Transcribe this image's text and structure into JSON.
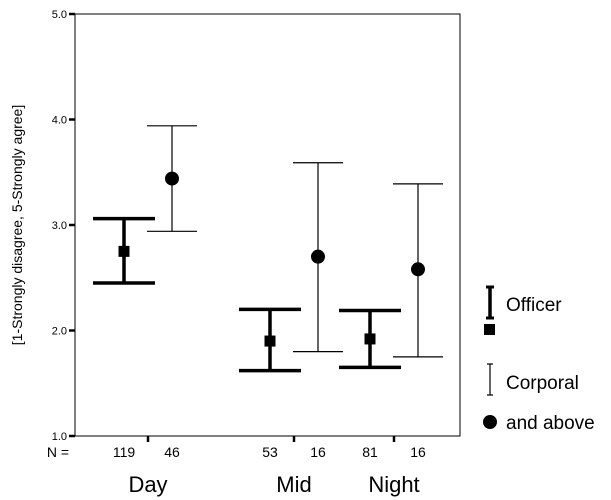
{
  "chart_data": {
    "type": "errorbar",
    "ylabel": "[1-Strongly disagree,  5-Strongly agree]",
    "ylim": [
      1.0,
      5.0
    ],
    "yticks": [
      "1.0",
      "2.0",
      "3.0",
      "4.0",
      "5.0"
    ],
    "n_prefix": "N =",
    "groups": [
      "Day",
      "Mid",
      "Night"
    ],
    "series": [
      {
        "name": "Officer",
        "marker": "square",
        "n": [
          "119",
          "53",
          "81"
        ],
        "mean": [
          2.75,
          1.9,
          1.92
        ],
        "lower": [
          2.45,
          1.62,
          1.65
        ],
        "upper": [
          3.06,
          2.2,
          2.19
        ]
      },
      {
        "name": "Corporal and above",
        "marker": "circle",
        "n": [
          "46",
          "16",
          "16"
        ],
        "mean": [
          3.44,
          2.7,
          2.58
        ],
        "lower": [
          2.94,
          1.8,
          1.75
        ],
        "upper": [
          3.94,
          3.59,
          3.39
        ]
      }
    ],
    "legend": {
      "officer_label": "Officer",
      "corporal_line1": "Corporal",
      "corporal_line2": "and above"
    }
  }
}
